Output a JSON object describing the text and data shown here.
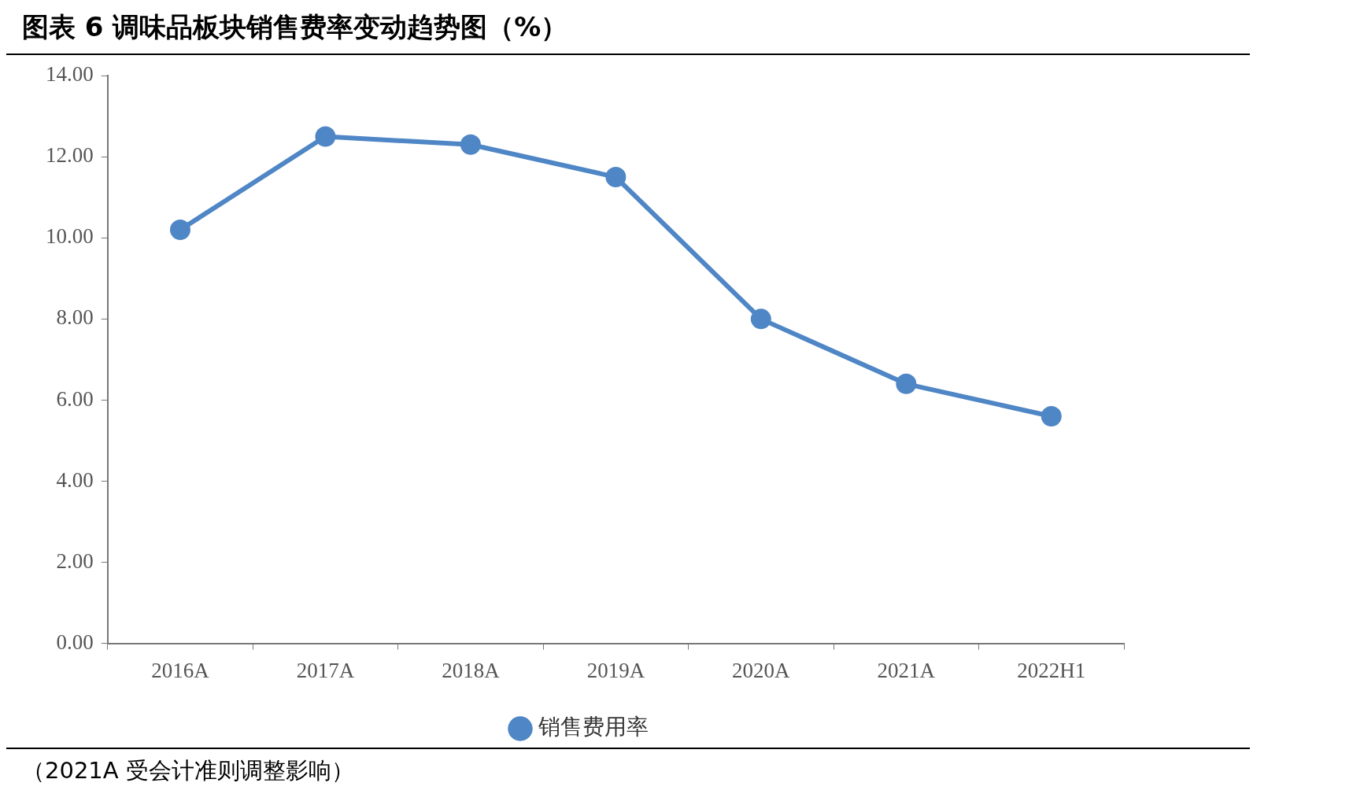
{
  "chart_data": {
    "type": "line",
    "title": "图表 6 调味品板块销售费率变动趋势图（%）",
    "categories": [
      "2016A",
      "2017A",
      "2018A",
      "2019A",
      "2020A",
      "2021A",
      "2022H1"
    ],
    "series": [
      {
        "name": "销售费用率",
        "color": "#4f86c6",
        "values": [
          10.2,
          12.5,
          12.3,
          11.5,
          8.0,
          6.4,
          5.6
        ]
      }
    ],
    "ylim": [
      0,
      14
    ],
    "yticks": [
      {
        "value": 0,
        "label": "0.00"
      },
      {
        "value": 2,
        "label": "2.00"
      },
      {
        "value": 4,
        "label": "4.00"
      },
      {
        "value": 6,
        "label": "6.00"
      },
      {
        "value": 8,
        "label": "8.00"
      },
      {
        "value": 10,
        "label": "10.00"
      },
      {
        "value": 12,
        "label": "12.00"
      },
      {
        "value": 14,
        "label": "14.00"
      }
    ],
    "grid": false,
    "legend": "bottom",
    "marker": "circle",
    "line_style": "solid",
    "annotations": [
      "（2021A 受会计准则调整影响）"
    ]
  }
}
